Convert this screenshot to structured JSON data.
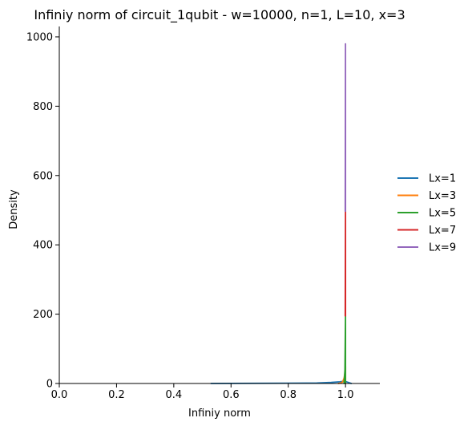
{
  "chart_data": {
    "type": "line",
    "title": "Infiniy norm of circuit_1qubit - w=10000, n=1, L=10, x=3",
    "xlabel": "Infiniy norm",
    "ylabel": "Density",
    "xlim": [
      0.0,
      1.12
    ],
    "ylim": [
      0,
      1030
    ],
    "xticks": [
      0.0,
      0.2,
      0.4,
      0.6,
      0.8,
      1.0
    ],
    "xtick_labels": [
      "0.0",
      "0.2",
      "0.4",
      "0.6",
      "0.8",
      "1.0"
    ],
    "yticks": [
      0,
      200,
      400,
      600,
      800,
      1000
    ],
    "ytick_labels": [
      "0",
      "200",
      "400",
      "600",
      "800",
      "1000"
    ],
    "grid": false,
    "legend_position": "right",
    "series": [
      {
        "name": "Lx=1",
        "color": "#1f77b4",
        "x": [
          0.53,
          0.6,
          0.7,
          0.8,
          0.9,
          0.95,
          0.98,
          0.99,
          1.0,
          1.01,
          1.02
        ],
        "y": [
          0,
          0.3,
          0.5,
          0.8,
          1.5,
          3,
          5,
          6,
          6,
          3,
          0
        ]
      },
      {
        "name": "Lx=3",
        "color": "#ff7f0e",
        "x": [
          0.975,
          0.985,
          0.99,
          0.995,
          0.998,
          1.0,
          1.0,
          1.0
        ],
        "y": [
          0,
          2,
          5,
          15,
          30,
          50,
          25,
          0
        ]
      },
      {
        "name": "Lx=5",
        "color": "#2ca02c",
        "x": [
          0.995,
          0.998,
          1.0,
          1.0,
          1.0
        ],
        "y": [
          0,
          40,
          195,
          100,
          0
        ]
      },
      {
        "name": "Lx=7",
        "color": "#d62728",
        "x": [
          0.999,
          1.0,
          1.0,
          1.0
        ],
        "y": [
          195,
          497,
          300,
          195
        ]
      },
      {
        "name": "Lx=9",
        "color": "#9467bd",
        "x": [
          0.999,
          1.0,
          1.0,
          1.0
        ],
        "y": [
          497,
          980,
          700,
          497
        ]
      }
    ]
  }
}
